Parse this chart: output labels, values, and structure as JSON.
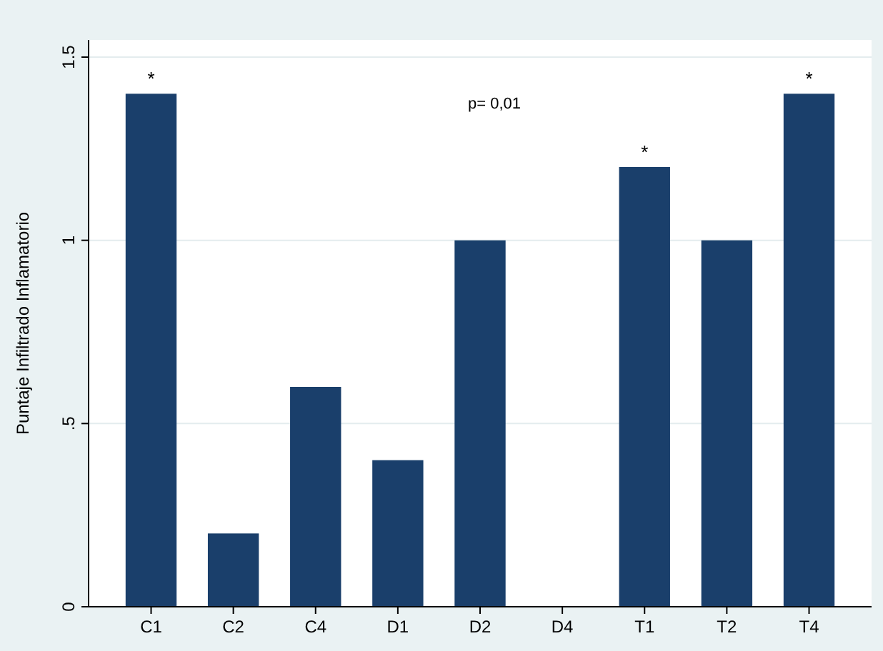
{
  "chart_data": {
    "type": "bar",
    "ylabel": "Puntaje Infiltrado Inflamatorio",
    "categories": [
      "C1",
      "C2",
      "C4",
      "D1",
      "D2",
      "D4",
      "T1",
      "T2",
      "T4"
    ],
    "values": [
      1.4,
      0.2,
      0.6,
      0.4,
      1.0,
      0,
      1.2,
      1.0,
      1.4
    ],
    "color": "#1a3f6b",
    "ylim": [
      0,
      1.5
    ],
    "yticks": [
      0,
      {
        "value": 0.5,
        "label": ".5"
      },
      1,
      1.5
    ],
    "grid": "y",
    "annotations": [
      "p= 0,01",
      {
        "text": "*",
        "x": "C1",
        "y": 1.4
      },
      {
        "text": "*",
        "x": "T1",
        "y": 1.2
      },
      {
        "text": "*",
        "x": "T4",
        "y": 1.4
      }
    ]
  }
}
